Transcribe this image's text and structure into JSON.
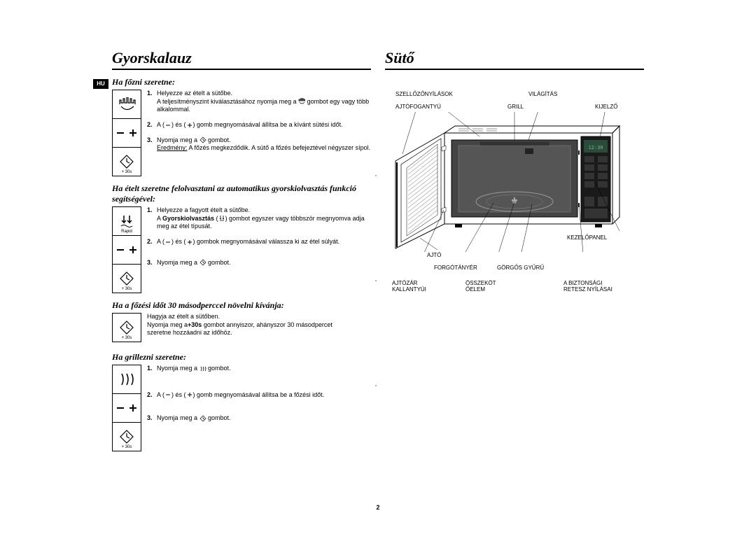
{
  "page_number": "2",
  "lang_badge": "HU",
  "left": {
    "title": "Gyorskalauz",
    "sec1": {
      "heading": "Ha főzni szeretne:",
      "steps": [
        {
          "n": "1.",
          "html": "Helyezze az ételt a sütőbe.<br>A teljesítményszint kiválasztásához nyomja meg a <svg class='inline-icon' viewBox='0 0 10 10'><path d='M1 5 L1 2 L2 2 L2 4 L3 4 L3 1 L4 1 L4 4 L5 4 L5 0 L6 0 L6 4 L7 4 L7 1 L8 1 L8 4 L9 4 L9 2 L10 2 L10 5 M2 6 Q5 10 9 6' fill='none' stroke='#000' stroke-width='0.7'/></svg> gombot egy vagy több alkalommal."
        },
        {
          "n": "2.",
          "html": "A (<svg class='inline-icon' viewBox='0 0 10 10'><line x1='2' y1='5' x2='8' y2='5' stroke='#000' stroke-width='1'/></svg>) és (<svg class='inline-icon' viewBox='0 0 10 10'><line x1='2' y1='5' x2='8' y2='5' stroke='#000' stroke-width='1'/><line x1='5' y1='2' x2='5' y2='8' stroke='#000' stroke-width='1'/></svg>) gomb megnyomásával állítsa be a kívánt sütési időt."
        },
        {
          "n": "3.",
          "html": "Nyomja meg a <svg class='inline-icon' viewBox='0 0 10 10'><polygon points='5,1 9,5 5,9 1,5' fill='none' stroke='#000' stroke-width='0.7'/><line x1='5' y1='3' x2='5' y2='5' stroke='#000' stroke-width='0.7'/><line x1='5' y1='5' x2='7' y2='6' stroke='#000' stroke-width='0.7'/></svg> gombot.<br><u>Eredmény:</u> A főzés megkezdődik. A sütő a főzés befejeztével négyszer sípol."
        }
      ]
    },
    "sec2": {
      "heading": "Ha ételt szeretne felolvasztani az automatikus gyorskiolvasztás funkció segítségével:",
      "steps": [
        {
          "n": "1.",
          "html": "Helyezze a fagyott ételt a sütőbe.<br>A <b>Gyorskiolvasztás</b> (<svg class='inline-icon' viewBox='0 0 10 10'><path d='M3 1 L3 6 L2 5 M3 6 L4 5 M7 1 L7 6 L6 5 M7 6 L8 5 M2 8 L8 8' fill='none' stroke='#000' stroke-width='0.8'/></svg>) gombot egyszer vagy többször megnyomva adja meg az étel típusát."
        },
        {
          "n": "2.",
          "html": "A (<svg class='inline-icon' viewBox='0 0 10 10'><line x1='2' y1='5' x2='8' y2='5' stroke='#000' stroke-width='1'/></svg>) és (<svg class='inline-icon' viewBox='0 0 10 10'><line x1='2' y1='5' x2='8' y2='5' stroke='#000' stroke-width='1'/><line x1='5' y1='2' x2='5' y2='8' stroke='#000' stroke-width='1'/></svg>) gombok megnyomásával válassza ki az étel súlyát."
        },
        {
          "n": "3.",
          "html": "Nyomja meg a <svg class='inline-icon' viewBox='0 0 10 10'><polygon points='5,1 9,5 5,9 1,5' fill='none' stroke='#000' stroke-width='0.7'/><line x1='5' y1='3' x2='5' y2='5' stroke='#000' stroke-width='0.7'/><line x1='5' y1='5' x2='7' y2='6' stroke='#000' stroke-width='0.7'/></svg> gombot."
        }
      ]
    },
    "sec3": {
      "heading": "Ha a főzési időt 30 másodperccel növelni kívánja:",
      "plain": "Hagyja az ételt a sütőben.<br>Nyomja meg a<b>+30s</b> gombot annyiszor, ahányszor 30 másodpercet<br>szeretne hozzáadni az időhöz."
    },
    "sec4": {
      "heading": "Ha grillezni szeretne:",
      "steps": [
        {
          "n": "1.",
          "html": "Nyomja meg a <svg class='inline-icon' viewBox='0 0 10 10'><path d='M2 2 Q4 5 2 8 M5 2 Q7 5 5 8 M8 2 Q10 5 8 8' fill='none' stroke='#000' stroke-width='0.8'/></svg> gombot."
        },
        {
          "n": "2.",
          "html": "A (<svg class='inline-icon' viewBox='0 0 10 10'><line x1='2' y1='5' x2='8' y2='5' stroke='#000' stroke-width='1'/></svg>) és (<svg class='inline-icon' viewBox='0 0 10 10'><line x1='2' y1='5' x2='8' y2='5' stroke='#000' stroke-width='1'/><line x1='5' y1='2' x2='5' y2='8' stroke='#000' stroke-width='1'/></svg>) gomb megnyomásával állítsa be a főzési időt."
        },
        {
          "n": "3.",
          "html": "Nyomja meg a <svg class='inline-icon' viewBox='0 0 10 10'><polygon points='5,1 9,5 5,9 1,5' fill='none' stroke='#000' stroke-width='0.7'/><line x1='5' y1='3' x2='5' y2='5' stroke='#000' stroke-width='0.7'/><line x1='5' y1='5' x2='7' y2='6' stroke='#000' stroke-width='0.7'/></svg> gombot."
        }
      ]
    }
  },
  "right": {
    "title": "Sütő",
    "labels": {
      "szellozo": "SZELLŐZŐNYÍLÁSOK",
      "vilagitas": "VILÁGÍTÁS",
      "ajtofog": "AJTÓFOGANTYÚ",
      "grill": "GRILL",
      "kijelzo": "KIJELZŐ",
      "ajto": "AJTÓ",
      "kezelo": "KEZELŐPANEL",
      "forgo": "FORGÓTÁNYÉR",
      "gorgos": "GÖRGŐS GYŰRŰ",
      "ajtozar": "AJTÓZÁR<br>KALLANTYÚI",
      "osszekot": "ÖSSZEKÖT<br>ŐELEM",
      "biztons": "A BIZTONSÁGI<br>RETESZ NYÍLÁSAI"
    }
  },
  "icons": {
    "sub_30s": "+ 30s",
    "rapid": "Rapid"
  }
}
